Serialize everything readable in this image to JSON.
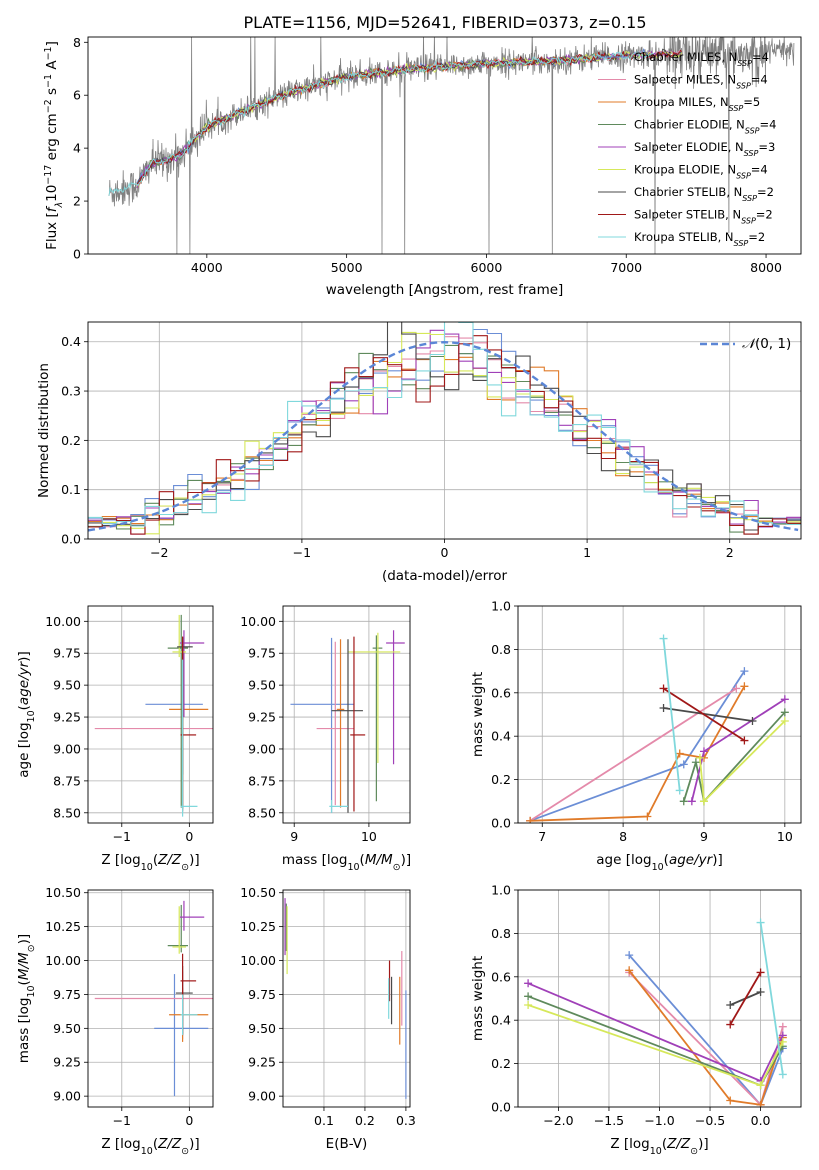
{
  "figure_title": "PLATE=1156, MJD=52641, FIBERID=0373, z=0.15",
  "colors": {
    "Chabrier MILES": "#6b8ed6",
    "Salpeter MILES": "#e48aaa",
    "Kroupa MILES": "#e07b2a",
    "Chabrier ELODIE": "#5f8a5c",
    "Salpeter ELODIE": "#a040b8",
    "Kroupa ELODIE": "#d6e85a",
    "Chabrier STELIB": "#4a4a4a",
    "Salpeter STELIB": "#a01818",
    "Kroupa STELIB": "#80d8dc",
    "data": "#808080",
    "normal": "#5b86d6"
  },
  "chart_data": [
    {
      "id": "spectrum",
      "type": "line",
      "xlabel": "wavelength [Angstrom, rest frame]",
      "ylabel_parts": [
        "Flux [",
        "f",
        "λ",
        "10",
        "−17",
        " erg cm",
        "−2",
        " s",
        "−1",
        " A",
        "−1",
        "]"
      ],
      "xlim": [
        3150,
        8250
      ],
      "ylim": [
        0,
        8.2
      ],
      "xticks": [
        4000,
        5000,
        6000,
        7000,
        8000
      ],
      "yticks": [
        0,
        2,
        4,
        6,
        8
      ],
      "data_series_color": "gray",
      "legend_position": "upper-right",
      "legend": [
        {
          "name": "Chabrier MILES",
          "nssp": "4"
        },
        {
          "name": "Salpeter MILES",
          "nssp": "4"
        },
        {
          "name": "Kroupa MILES",
          "nssp": "5"
        },
        {
          "name": "Chabrier ELODIE",
          "nssp": "4"
        },
        {
          "name": "Salpeter ELODIE",
          "nssp": "3"
        },
        {
          "name": "Kroupa ELODIE",
          "nssp": "4"
        },
        {
          "name": "Chabrier STELIB",
          "nssp": "2"
        },
        {
          "name": "Salpeter STELIB",
          "nssp": "2"
        },
        {
          "name": "Kroupa STELIB",
          "nssp": "2"
        }
      ],
      "model_trend": [
        [
          3300,
          2.3
        ],
        [
          3500,
          2.6
        ],
        [
          3600,
          3.4
        ],
        [
          3800,
          3.7
        ],
        [
          4000,
          4.8
        ],
        [
          4300,
          5.5
        ],
        [
          4600,
          6.1
        ],
        [
          5000,
          6.7
        ],
        [
          5500,
          7.0
        ],
        [
          6000,
          7.2
        ],
        [
          6500,
          7.3
        ],
        [
          7000,
          7.5
        ],
        [
          7500,
          7.6
        ],
        [
          8000,
          7.7
        ]
      ]
    },
    {
      "id": "residuals",
      "type": "histogram",
      "xlabel": "(data-model)/error",
      "ylabel": "Normed distribution",
      "xlim": [
        -2.5,
        2.5
      ],
      "ylim": [
        0,
        0.44
      ],
      "xticks": [
        -2,
        -1,
        0,
        1,
        2
      ],
      "yticks": [
        0.0,
        0.1,
        0.2,
        0.3,
        0.4
      ],
      "grid": true,
      "legend_position": "upper-right",
      "normal_label_parts": [
        "𝒩",
        "(0, 1)"
      ],
      "bin_width": 0.1
    },
    {
      "id": "age_vs_Z",
      "type": "errorbar",
      "xlabel_parts": [
        "Z [log",
        "10",
        "(",
        "Z/Z",
        "⊙",
        ")]"
      ],
      "ylabel_parts": [
        "age  [log",
        "10",
        "(",
        "age/yr",
        ")]"
      ],
      "xlim": [
        -1.5,
        0.35
      ],
      "ylim": [
        8.42,
        10.12
      ],
      "xticks": [
        -1,
        0
      ],
      "yticks": [
        8.5,
        8.75,
        9.0,
        9.25,
        9.5,
        9.75,
        10.0
      ],
      "grid": true,
      "points": [
        {
          "m": "Chabrier MILES",
          "x": -0.1,
          "xe": [
            0.55,
            0.3
          ],
          "y": 9.35,
          "ye": [
            0.82,
            0.52
          ]
        },
        {
          "m": "Salpeter MILES",
          "x": -0.1,
          "xe": [
            1.3,
            0.45
          ],
          "y": 9.16,
          "ye": [
            0.6,
            0.68
          ]
        },
        {
          "m": "Kroupa MILES",
          "x": -0.1,
          "xe": [
            0.2,
            0.38
          ],
          "y": 9.31,
          "ye": [
            0.77,
            0.45
          ]
        },
        {
          "m": "Chabrier ELODIE",
          "x": -0.12,
          "xe": [
            0.2,
            0.1
          ],
          "y": 9.79,
          "ye": [
            1.25,
            0.26
          ]
        },
        {
          "m": "Salpeter ELODIE",
          "x": -0.08,
          "xe": [
            0.06,
            0.3
          ],
          "y": 9.83,
          "ye": [
            0.58,
            0.1
          ]
        },
        {
          "m": "Kroupa ELODIE",
          "x": -0.15,
          "xe": [
            0.1,
            0.1
          ],
          "y": 9.76,
          "ye": [
            0.04,
            0.29
          ]
        },
        {
          "m": "Chabrier STELIB",
          "x": -0.1,
          "xe": [
            0.08,
            0.15
          ],
          "y": 9.8,
          "ye": [
            1.0,
            0.08
          ]
        },
        {
          "m": "Salpeter STELIB",
          "x": -0.1,
          "xe": [
            0.03,
            0.2
          ],
          "y": 9.11,
          "ye": [
            0.6,
            0.77
          ]
        },
        {
          "m": "Kroupa STELIB",
          "x": -0.1,
          "xe": [
            0.03,
            0.22
          ],
          "y": 8.55,
          "ye": [
            0.08,
            1.15
          ]
        }
      ]
    },
    {
      "id": "age_vs_mass",
      "type": "errorbar",
      "xlabel_parts": [
        "mass [log",
        "10",
        "(",
        "M/M",
        "⊙",
        ")]"
      ],
      "xlim": [
        8.85,
        10.55
      ],
      "ylim": [
        8.42,
        10.12
      ],
      "xticks": [
        9,
        10
      ],
      "yticks": [
        8.5,
        8.75,
        9.0,
        9.25,
        9.5,
        9.75,
        10.0
      ],
      "grid": true,
      "points": [
        {
          "m": "Chabrier MILES",
          "x": 9.5,
          "xe": [
            0.55,
            0.3
          ],
          "y": 9.35,
          "ye": [
            0.85,
            0.52
          ]
        },
        {
          "m": "Salpeter MILES",
          "x": 9.55,
          "xe": [
            0.25,
            0.25
          ],
          "y": 9.16,
          "ye": [
            0.6,
            0.68
          ]
        },
        {
          "m": "Kroupa MILES",
          "x": 9.62,
          "xe": [
            0.05,
            0.05
          ],
          "y": 9.31,
          "ye": [
            0.77,
            0.55
          ]
        },
        {
          "m": "Chabrier ELODIE",
          "x": 10.1,
          "xe": [
            0.05,
            0.08
          ],
          "y": 9.79,
          "ye": [
            1.2,
            0.1
          ]
        },
        {
          "m": "Salpeter ELODIE",
          "x": 10.33,
          "xe": [
            0.1,
            0.15
          ],
          "y": 9.83,
          "ye": [
            0.95,
            0.1
          ]
        },
        {
          "m": "Kroupa ELODIE",
          "x": 10.12,
          "xe": [
            0.4,
            0.3
          ],
          "y": 9.76,
          "ye": [
            0.87,
            0.15
          ]
        },
        {
          "m": "Chabrier STELIB",
          "x": 9.72,
          "xe": [
            0.22,
            0.2
          ],
          "y": 9.3,
          "ye": [
            0.8,
            0.56
          ]
        },
        {
          "m": "Salpeter STELIB",
          "x": 9.8,
          "xe": [
            0.05,
            0.15
          ],
          "y": 9.11,
          "ye": [
            0.6,
            0.77
          ]
        },
        {
          "m": "Kroupa STELIB",
          "x": 9.5,
          "xe": [
            0.03,
            0.22
          ],
          "y": 8.55,
          "ye": [
            0.05,
            0.05
          ]
        }
      ]
    },
    {
      "id": "weight_vs_age",
      "type": "line",
      "xlabel_parts": [
        "age  [log",
        "10",
        "(",
        "age/yr",
        ")]"
      ],
      "ylabel": "mass weight",
      "xlim": [
        6.7,
        10.2
      ],
      "ylim": [
        0,
        1.0
      ],
      "xticks": [
        7,
        8,
        9,
        10
      ],
      "yticks": [
        0.0,
        0.2,
        0.4,
        0.6,
        0.8,
        1.0
      ],
      "grid": true,
      "series": [
        {
          "m": "Chabrier MILES",
          "x": [
            6.85,
            8.75,
            9.5
          ],
          "y": [
            0.01,
            0.27,
            0.7
          ]
        },
        {
          "m": "Salpeter MILES",
          "x": [
            6.85,
            9.4
          ],
          "y": [
            0.01,
            0.62
          ]
        },
        {
          "m": "Kroupa MILES",
          "x": [
            6.85,
            8.3,
            8.7,
            9.0,
            9.5
          ],
          "y": [
            0.01,
            0.03,
            0.32,
            0.3,
            0.63
          ]
        },
        {
          "m": "Chabrier ELODIE",
          "x": [
            8.75,
            8.9,
            9.0,
            10.0
          ],
          "y": [
            0.1,
            0.28,
            0.1,
            0.51
          ]
        },
        {
          "m": "Salpeter ELODIE",
          "x": [
            8.85,
            9.0,
            10.0
          ],
          "y": [
            0.1,
            0.33,
            0.57
          ]
        },
        {
          "m": "Kroupa ELODIE",
          "x": [
            8.95,
            9.0,
            10.0
          ],
          "y": [
            0.3,
            0.1,
            0.47
          ]
        },
        {
          "m": "Chabrier STELIB",
          "x": [
            8.5,
            9.6
          ],
          "y": [
            0.53,
            0.47
          ]
        },
        {
          "m": "Salpeter STELIB",
          "x": [
            8.5,
            9.5
          ],
          "y": [
            0.62,
            0.38
          ]
        },
        {
          "m": "Kroupa STELIB",
          "x": [
            8.5,
            8.7
          ],
          "y": [
            0.85,
            0.15
          ]
        }
      ]
    },
    {
      "id": "mass_vs_Z",
      "type": "errorbar",
      "xlabel_parts": [
        "Z [log",
        "10",
        "(",
        "Z/Z",
        "⊙",
        ")]"
      ],
      "ylabel_parts": [
        "mass [log",
        "10",
        "(",
        "M/M",
        "⊙",
        ")]"
      ],
      "xlim": [
        -1.5,
        0.35
      ],
      "ylim": [
        8.92,
        10.52
      ],
      "xticks": [
        -1,
        0
      ],
      "yticks": [
        9.0,
        9.25,
        9.5,
        9.75,
        10.0,
        10.25,
        10.5
      ],
      "grid": true,
      "points": [
        {
          "m": "Chabrier MILES",
          "x": -0.22,
          "xe": [
            0.3,
            0.5
          ],
          "y": 9.5,
          "ye": [
            0.5,
            0.4
          ]
        },
        {
          "m": "Salpeter MILES",
          "x": -0.1,
          "xe": [
            1.3,
            0.45
          ],
          "y": 9.72,
          "ye": [
            0.3,
            0.2
          ]
        },
        {
          "m": "Kroupa MILES",
          "x": -0.1,
          "xe": [
            0.2,
            0.38
          ],
          "y": 9.6,
          "ye": [
            0.2,
            0.2
          ]
        },
        {
          "m": "Chabrier ELODIE",
          "x": -0.12,
          "xe": [
            0.2,
            0.1
          ],
          "y": 10.11,
          "ye": [
            0.05,
            0.3
          ]
        },
        {
          "m": "Salpeter ELODIE",
          "x": -0.08,
          "xe": [
            0.06,
            0.3
          ],
          "y": 10.32,
          "ye": [
            0.1,
            0.12
          ]
        },
        {
          "m": "Kroupa ELODIE",
          "x": -0.15,
          "xe": [
            0.1,
            0.1
          ],
          "y": 10.1,
          "ye": [
            0.05,
            0.3
          ]
        },
        {
          "m": "Chabrier STELIB",
          "x": -0.1,
          "xe": [
            0.1,
            0.15
          ],
          "y": 9.76,
          "ye": [
            0.3,
            0.2
          ]
        },
        {
          "m": "Salpeter STELIB",
          "x": -0.1,
          "xe": [
            0.03,
            0.2
          ],
          "y": 9.85,
          "ye": [
            0.4,
            0.2
          ]
        },
        {
          "m": "Kroupa STELIB",
          "x": -0.1,
          "xe": [
            0.03,
            0.22
          ],
          "y": 9.6,
          "ye": [
            0.15,
            0.15
          ]
        }
      ]
    },
    {
      "id": "mass_vs_ebv",
      "type": "errorbar",
      "xlabel": "E(B-V)",
      "xlim": [
        0.0,
        0.31
      ],
      "ylim": [
        8.92,
        10.52
      ],
      "xticks": [
        0.1,
        0.2,
        0.3
      ],
      "yticks": [
        9.0,
        9.25,
        9.5,
        9.75,
        10.0,
        10.25,
        10.5
      ],
      "grid": true,
      "points": [
        {
          "m": "Chabrier MILES",
          "x": 0.3,
          "y": 9.4,
          "ye": [
            0.42,
            0.38
          ]
        },
        {
          "m": "Salpeter MILES",
          "x": 0.29,
          "y": 9.82,
          "ye": [
            0.3,
            0.25
          ]
        },
        {
          "m": "Kroupa MILES",
          "x": 0.285,
          "y": 9.65,
          "ye": [
            0.27,
            0.23
          ]
        },
        {
          "m": "Chabrier ELODIE",
          "x": 0.008,
          "y": 10.22,
          "ye": [
            0.15,
            0.2
          ]
        },
        {
          "m": "Salpeter ELODIE",
          "x": 0.005,
          "y": 10.24,
          "ye": [
            0.2,
            0.22
          ]
        },
        {
          "m": "Kroupa ELODIE",
          "x": 0.01,
          "y": 10.15,
          "ye": [
            0.25,
            0.25
          ]
        },
        {
          "m": "Chabrier STELIB",
          "x": 0.265,
          "y": 9.78,
          "ye": [
            0.25,
            0.1
          ]
        },
        {
          "m": "Salpeter STELIB",
          "x": 0.26,
          "y": 9.85,
          "ye": [
            0.15,
            0.15
          ]
        },
        {
          "m": "Kroupa STELIB",
          "x": 0.258,
          "y": 9.72,
          "ye": [
            0.15,
            0.15
          ]
        }
      ]
    },
    {
      "id": "weight_vs_Z",
      "type": "line",
      "xlabel_parts": [
        "Z [log",
        "10",
        "(",
        "Z/Z",
        "⊙",
        ")]"
      ],
      "ylabel": "mass weight",
      "xlim": [
        -2.4,
        0.4
      ],
      "ylim": [
        0,
        1.0
      ],
      "xticks": [
        -2.0,
        -1.5,
        -1.0,
        -0.5,
        0.0
      ],
      "yticks": [
        0.0,
        0.2,
        0.4,
        0.6,
        0.8,
        1.0
      ],
      "grid": true,
      "series": [
        {
          "m": "Chabrier MILES",
          "x": [
            -1.3,
            0.0,
            0.22
          ],
          "y": [
            0.7,
            0.01,
            0.27
          ]
        },
        {
          "m": "Salpeter MILES",
          "x": [
            -1.3,
            0.0,
            0.22
          ],
          "y": [
            0.62,
            0.01,
            0.37
          ]
        },
        {
          "m": "Kroupa MILES",
          "x": [
            -1.3,
            -0.3,
            0.0,
            0.22
          ],
          "y": [
            0.63,
            0.03,
            0.01,
            0.32
          ]
        },
        {
          "m": "Chabrier ELODIE",
          "x": [
            -2.3,
            0.0,
            0.22
          ],
          "y": [
            0.51,
            0.1,
            0.28
          ]
        },
        {
          "m": "Salpeter ELODIE",
          "x": [
            -2.3,
            0.0,
            0.22
          ],
          "y": [
            0.57,
            0.12,
            0.33
          ]
        },
        {
          "m": "Kroupa ELODIE",
          "x": [
            -2.3,
            0.0,
            0.22
          ],
          "y": [
            0.47,
            0.1,
            0.3
          ]
        },
        {
          "m": "Chabrier STELIB",
          "x": [
            -0.3,
            0.0
          ],
          "y": [
            0.47,
            0.53
          ]
        },
        {
          "m": "Salpeter STELIB",
          "x": [
            -0.3,
            0.0
          ],
          "y": [
            0.38,
            0.62
          ]
        },
        {
          "m": "Kroupa STELIB",
          "x": [
            0.0,
            0.22
          ],
          "y": [
            0.85,
            0.15
          ]
        }
      ]
    }
  ]
}
